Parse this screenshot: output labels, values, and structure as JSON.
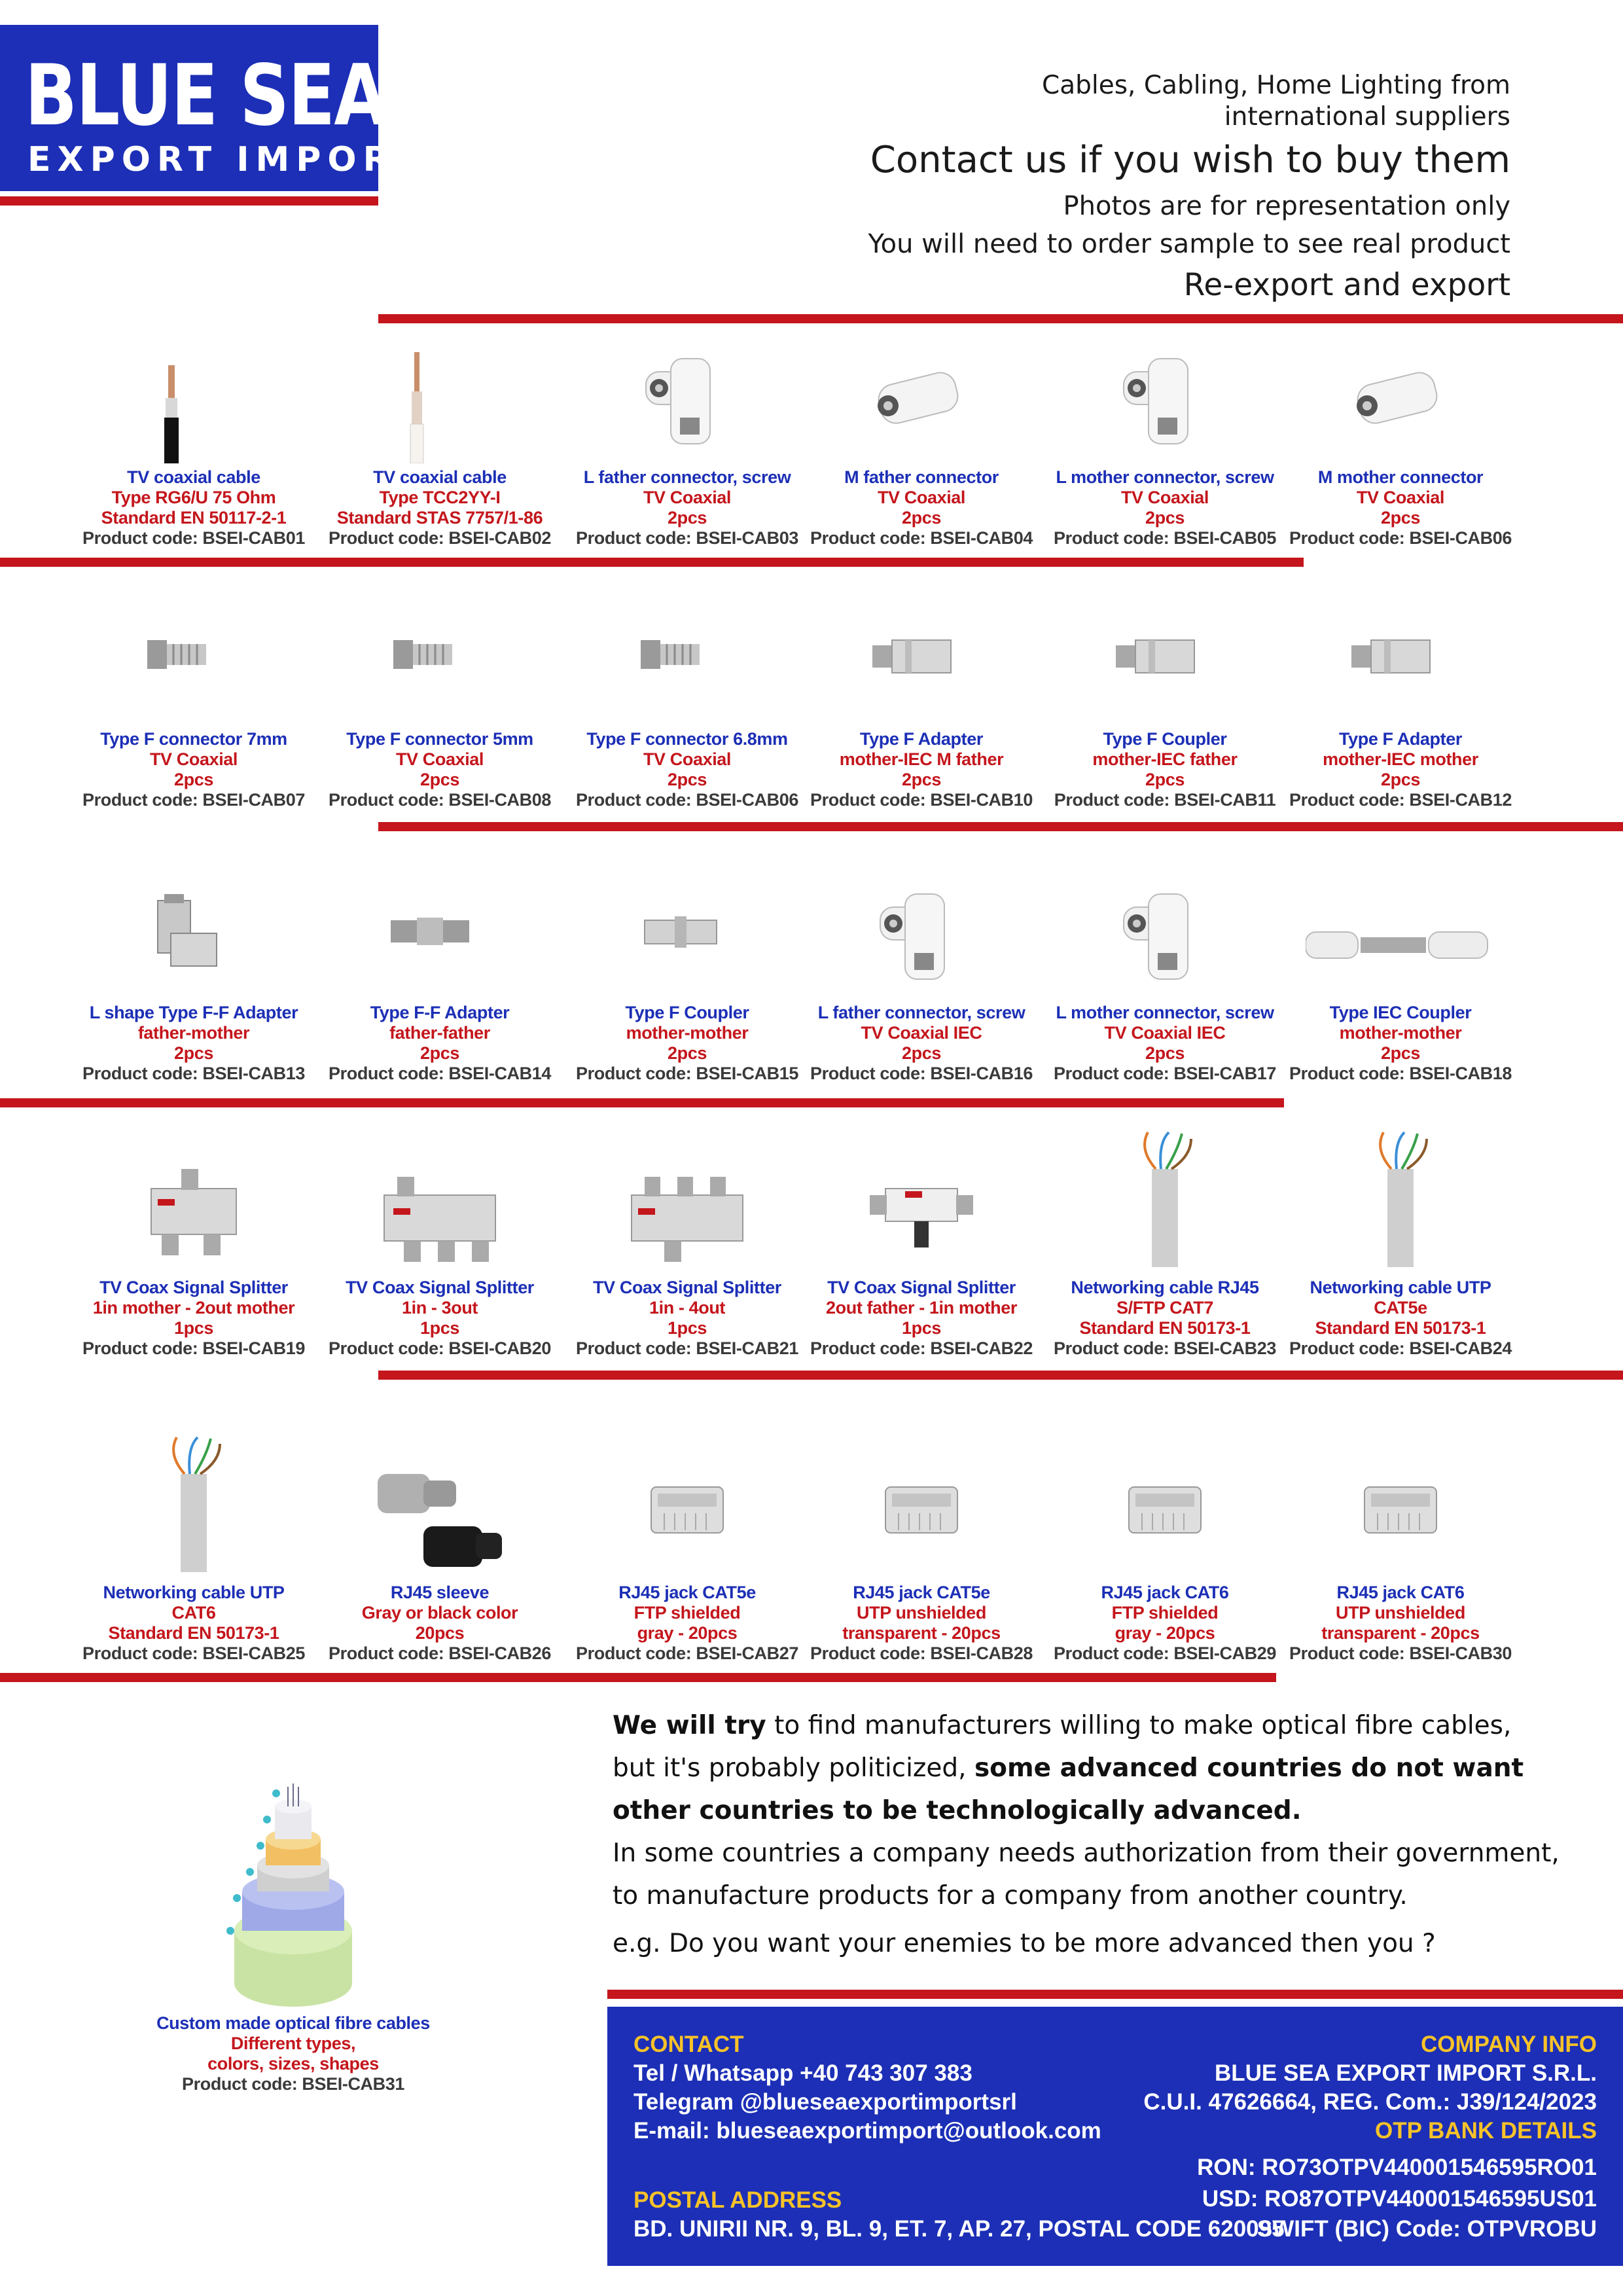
{
  "logo": {
    "line1": "BLUE SEA",
    "line2": "EXPORT IMPORT"
  },
  "header": {
    "line1": "Cables, Cabling, Home Lighting  from",
    "line2": "international suppliers",
    "contact": "Contact us if you wish to buy them",
    "photos": "Photos are for representation only",
    "sample": "You will need to order sample to see real product",
    "reexport": "Re-export and export"
  },
  "colors": {
    "brand_blue": "#1c2fb6",
    "accent_red": "#c4161c",
    "footer_heading": "#f7c228"
  },
  "products": [
    {
      "name": "TV coaxial cable",
      "d1": "Type RG6/U 75 Ohm",
      "d2": "Standard EN 50117-2-1",
      "code": "Product code: BSEI-CAB01",
      "icon": "black-coax-cable-icon"
    },
    {
      "name": "TV coaxial cable",
      "d1": "Type TCC2YY-I",
      "d2": "Standard STAS 7757/1-86",
      "code": "Product code: BSEI-CAB02",
      "icon": "white-coax-cable-icon"
    },
    {
      "name": "L father connector, screw",
      "d1": "TV Coaxial",
      "d2": "2pcs",
      "code": "Product code: BSEI-CAB03",
      "icon": "angled-connector-icon"
    },
    {
      "name": "M father connector",
      "d1": "TV Coaxial",
      "d2": "2pcs",
      "code": "Product code: BSEI-CAB04",
      "icon": "straight-connector-icon"
    },
    {
      "name": "L mother connector, screw",
      "d1": "TV Coaxial",
      "d2": "2pcs",
      "code": "Product code: BSEI-CAB05",
      "icon": "angled-connector-icon"
    },
    {
      "name": "M mother connector",
      "d1": "TV Coaxial",
      "d2": "2pcs",
      "code": "Product code: BSEI-CAB06",
      "icon": "straight-connector-icon"
    },
    {
      "name": "Type F connector 7mm",
      "d1": "TV Coaxial",
      "d2": "2pcs",
      "code": "Product code: BSEI-CAB07",
      "icon": "f-connector-icon"
    },
    {
      "name": "Type F connector 5mm",
      "d1": "TV Coaxial",
      "d2": "2pcs",
      "code": "Product code: BSEI-CAB08",
      "icon": "f-connector-icon"
    },
    {
      "name": "Type F connector 6.8mm",
      "d1": "TV Coaxial",
      "d2": "2pcs",
      "code": "Product code: BSEI-CAB06",
      "icon": "f-connector-icon"
    },
    {
      "name": "Type F Adapter",
      "d1": "mother-IEC M father",
      "d2": "2pcs",
      "code": "Product code: BSEI-CAB10",
      "icon": "metal-adapter-icon"
    },
    {
      "name": "Type F Coupler",
      "d1": "mother-IEC father",
      "d2": "2pcs",
      "code": "Product code: BSEI-CAB11",
      "icon": "metal-adapter-icon"
    },
    {
      "name": "Type F Adapter",
      "d1": "mother-IEC mother",
      "d2": "2pcs",
      "code": "Product code: BSEI-CAB12",
      "icon": "metal-adapter-icon"
    },
    {
      "name": "L shape Type F-F Adapter",
      "d1": "father-mother",
      "d2": "2pcs",
      "code": "Product code: BSEI-CAB13",
      "icon": "l-adapter-icon"
    },
    {
      "name": "Type F-F Adapter",
      "d1": "father-father",
      "d2": "2pcs",
      "code": "Product code: BSEI-CAB14",
      "icon": "ff-adapter-icon"
    },
    {
      "name": "Type F Coupler",
      "d1": "mother-mother",
      "d2": "2pcs",
      "code": "Product code: BSEI-CAB15",
      "icon": "coupler-icon"
    },
    {
      "name": "L father connector, screw",
      "d1": "TV Coaxial IEC",
      "d2": "2pcs",
      "code": "Product code: BSEI-CAB16",
      "icon": "angled-connector-icon"
    },
    {
      "name": "L mother connector, screw",
      "d1": "TV Coaxial IEC",
      "d2": "2pcs",
      "code": "Product code: BSEI-CAB17",
      "icon": "angled-connector-icon"
    },
    {
      "name": "Type IEC Coupler",
      "d1": "mother-mother",
      "d2": "2pcs",
      "code": "Product code: BSEI-CAB18",
      "icon": "iec-coupler-icon"
    },
    {
      "name": "TV Coax Signal Splitter",
      "d1": "1in mother - 2out mother",
      "d2": "1pcs",
      "code": "Product code: BSEI-CAB19",
      "icon": "splitter-2-icon"
    },
    {
      "name": "TV Coax Signal Splitter",
      "d1": "1in - 3out",
      "d2": "1pcs",
      "code": "Product code: BSEI-CAB20",
      "icon": "splitter-3-icon"
    },
    {
      "name": "TV Coax Signal Splitter",
      "d1": "1in - 4out",
      "d2": "1pcs",
      "code": "Product code: BSEI-CAB21",
      "icon": "splitter-4-icon"
    },
    {
      "name": "TV Coax Signal Splitter",
      "d1": "2out father - 1in mother",
      "d2": "1pcs",
      "code": "Product code: BSEI-CAB22",
      "icon": "t-splitter-icon"
    },
    {
      "name": "Networking cable RJ45",
      "d1": "S/FTP CAT7",
      "d2": "Standard EN 50173-1",
      "code": "Product code: BSEI-CAB23",
      "icon": "network-cable-icon"
    },
    {
      "name": "Networking cable UTP",
      "d1": "CAT5e",
      "d2": "Standard EN 50173-1",
      "code": "Product code: BSEI-CAB24",
      "icon": "network-cable-icon"
    },
    {
      "name": "Networking cable UTP",
      "d1": "CAT6",
      "d2": "Standard EN 50173-1",
      "code": "Product code: BSEI-CAB25",
      "icon": "network-cable-icon"
    },
    {
      "name": "RJ45 sleeve",
      "d1": "Gray or black color",
      "d2": "20pcs",
      "code": "Product code: BSEI-CAB26",
      "icon": "rj45-sleeve-icon"
    },
    {
      "name": "RJ45 jack CAT5e",
      "d1": "FTP shielded",
      "d2": "gray - 20pcs",
      "code": "Product code: BSEI-CAB27",
      "icon": "rj45-jack-icon"
    },
    {
      "name": "RJ45 jack CAT5e",
      "d1": "UTP unshielded",
      "d2": "transparent - 20pcs",
      "code": "Product code: BSEI-CAB28",
      "icon": "rj45-jack-icon"
    },
    {
      "name": "RJ45 jack CAT6",
      "d1": "FTP shielded",
      "d2": "gray - 20pcs",
      "code": "Product code: BSEI-CAB29",
      "icon": "rj45-jack-icon"
    },
    {
      "name": "RJ45 jack CAT6",
      "d1": "UTP unshielded",
      "d2": "transparent - 20pcs",
      "code": "Product code: BSEI-CAB30",
      "icon": "rj45-jack-icon"
    }
  ],
  "fibre": {
    "name": "Custom made optical fibre cables",
    "d1": "Different types,",
    "d2": "colors, sizes, shapes",
    "code": "Product code: BSEI-CAB31"
  },
  "paragraph": {
    "b1": "We will try",
    "t1": " to find manufacturers willing to make optical fibre cables,",
    "t2": "but it's probably politicized, ",
    "b2": "some advanced countries do not want",
    "b3": "other countries to be technologically advanced.",
    "t3": "In some countries a company needs authorization from their government,",
    "t4": "to manufacture products for a company from another country.",
    "t5": "e.g. Do you want your enemies to be more advanced then you ?"
  },
  "footer": {
    "contact_heading": "CONTACT",
    "phone": "Tel / Whatsapp +40 743 307 383",
    "telegram": "Telegram @blueseaexportimportsrl",
    "email": "E-mail: blueseaexportimport@outlook.com",
    "postal_heading": "POSTAL ADDRESS",
    "address": "BD. UNIRII NR. 9, BL. 9, ET. 7, AP. 27, POSTAL CODE 620095",
    "company_heading": "COMPANY INFO",
    "company_name": "BLUE SEA EXPORT IMPORT S.R.L.",
    "company_ids": "C.U.I. 47626664, REG. Com.: J39/124/2023",
    "bank_heading": "OTP BANK DETAILS",
    "ron": "RON: RO73OTPV440001546595RO01",
    "usd": "USD: RO87OTPV440001546595US01",
    "swift": "SWIFT (BIC) Code: OTPVROBU"
  }
}
